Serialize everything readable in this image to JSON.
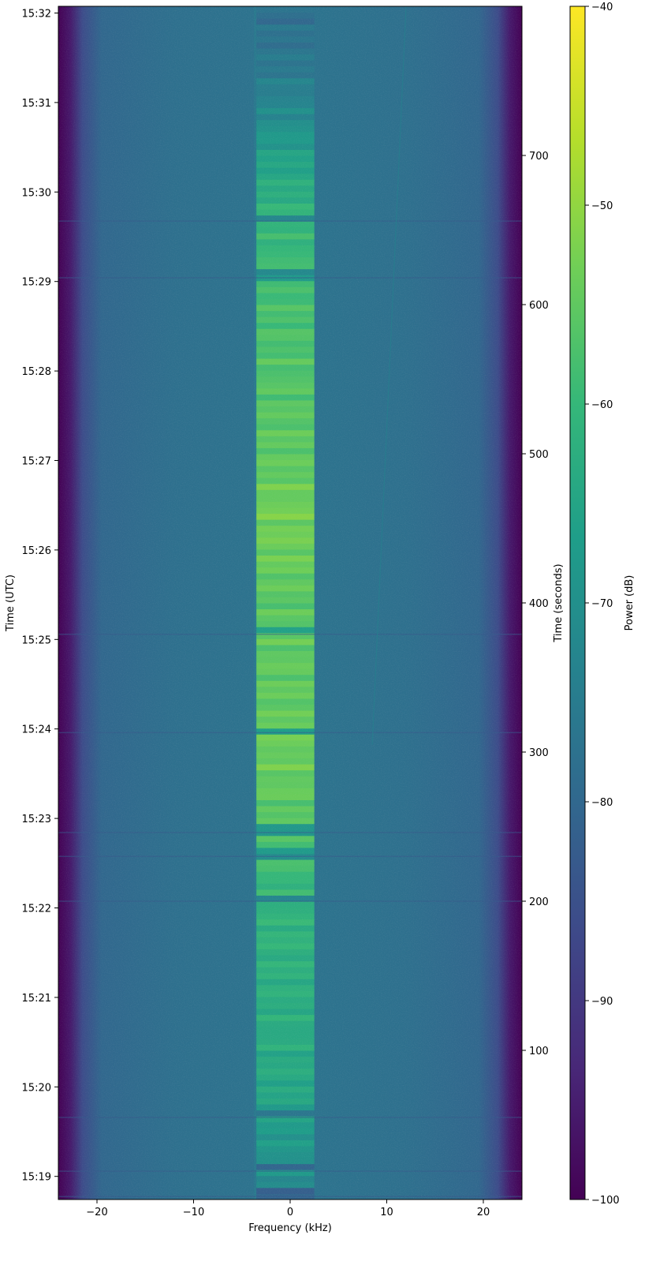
{
  "chart_data": {
    "type": "heatmap",
    "title": "",
    "xlabel": "Frequency (kHz)",
    "ylabel_left": "Time (UTC)",
    "ylabel_right": "Time (seconds)",
    "colorbar_label": "Power (dB)",
    "colormap": "viridis",
    "colormap_stops": [
      "#440154",
      "#482878",
      "#3e4989",
      "#31688e",
      "#26828e",
      "#1f9e89",
      "#35b779",
      "#6ece58",
      "#b5de2b",
      "#fde725"
    ],
    "xlim": [
      -24,
      24
    ],
    "x_ticks": [
      -20,
      -10,
      0,
      10,
      20
    ],
    "x_tick_labels": [
      "−20",
      "−10",
      "0",
      "10",
      "20"
    ],
    "time_seconds_lim": [
      0,
      800
    ],
    "right_ticks": [
      100,
      200,
      300,
      400,
      500,
      600,
      700
    ],
    "right_tick_labels": [
      "100",
      "200",
      "300",
      "400",
      "500",
      "600",
      "700"
    ],
    "utc_ticks_seconds": [
      15.5,
      75.5,
      135.5,
      195.5,
      255.5,
      315.5,
      375.5,
      435.5,
      495.5,
      555.5,
      615.5,
      675.5,
      735.5,
      795.5
    ],
    "utc_tick_labels": [
      "15:19",
      "15:20",
      "15:21",
      "15:22",
      "15:23",
      "15:24",
      "15:25",
      "15:26",
      "15:27",
      "15:28",
      "15:29",
      "15:30",
      "15:31",
      "15:32"
    ],
    "clim": [
      -100,
      -40
    ],
    "colorbar_ticks": [
      -40,
      -50,
      -60,
      -70,
      -80,
      -90,
      -100
    ],
    "colorbar_tick_labels": [
      "−40",
      "−50",
      "−60",
      "−70",
      "−80",
      "−90",
      "−100"
    ],
    "signal_band_khz": [
      -3.5,
      2.5
    ],
    "noise_floor_db": -78,
    "band_edge_db": -100,
    "signal_peak_db_by_time": [
      {
        "t": 0,
        "db": -72
      },
      {
        "t": 40,
        "db": -68
      },
      {
        "t": 80,
        "db": -64
      },
      {
        "t": 120,
        "db": -63
      },
      {
        "t": 160,
        "db": -62
      },
      {
        "t": 180,
        "db": -61
      },
      {
        "t": 200,
        "db": -62
      },
      {
        "t": 220,
        "db": -59
      },
      {
        "t": 240,
        "db": -58
      },
      {
        "t": 270,
        "db": -55
      },
      {
        "t": 300,
        "db": -54
      },
      {
        "t": 330,
        "db": -55
      },
      {
        "t": 360,
        "db": -55
      },
      {
        "t": 400,
        "db": -56
      },
      {
        "t": 430,
        "db": -54
      },
      {
        "t": 460,
        "db": -53
      },
      {
        "t": 490,
        "db": -55
      },
      {
        "t": 530,
        "db": -56
      },
      {
        "t": 560,
        "db": -57
      },
      {
        "t": 600,
        "db": -58
      },
      {
        "t": 640,
        "db": -60
      },
      {
        "t": 670,
        "db": -62
      },
      {
        "t": 700,
        "db": -66
      },
      {
        "t": 730,
        "db": -72
      },
      {
        "t": 760,
        "db": -76
      },
      {
        "t": 790,
        "db": -78
      }
    ],
    "signal_gaps_seconds": [
      2,
      19,
      55,
      200,
      230,
      246,
      313,
      379,
      618,
      656
    ],
    "drifting_carrier": {
      "start": {
        "t": 305,
        "khz": 8.5
      },
      "end": {
        "t": 800,
        "khz": 12
      },
      "db": -74
    }
  }
}
